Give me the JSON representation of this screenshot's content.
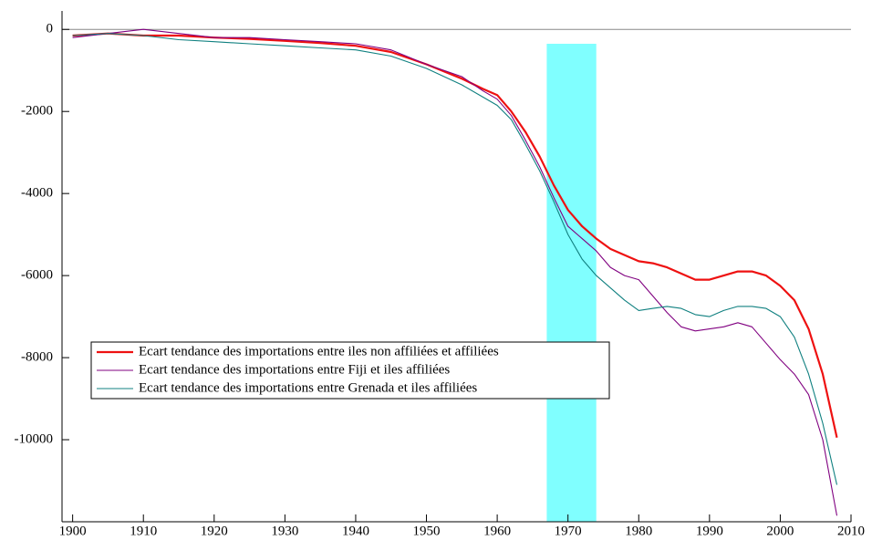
{
  "chart_data": {
    "type": "line",
    "x": [
      1900,
      1905,
      1910,
      1915,
      1920,
      1925,
      1930,
      1935,
      1940,
      1945,
      1950,
      1955,
      1958,
      1960,
      1962,
      1964,
      1966,
      1968,
      1970,
      1972,
      1974,
      1976,
      1978,
      1980,
      1982,
      1984,
      1986,
      1988,
      1990,
      1992,
      1994,
      1996,
      1998,
      2000,
      2002,
      2004,
      2006,
      2008
    ],
    "series": [
      {
        "name": "Ecart tendance des importations entre iles non affiliées et affiliées",
        "color": "#ee1111",
        "values": [
          -150,
          -100,
          -150,
          -150,
          -200,
          -230,
          -280,
          -330,
          -400,
          -550,
          -850,
          -1200,
          -1450,
          -1600,
          -2000,
          -2500,
          -3100,
          -3800,
          -4400,
          -4800,
          -5100,
          -5350,
          -5500,
          -5650,
          -5700,
          -5800,
          -5950,
          -6100,
          -6100,
          -6000,
          -5900,
          -5900,
          -6000,
          -6250,
          -6600,
          -7300,
          -8400,
          -9950
        ]
      },
      {
        "name": "Ecart tendance des importations entre Fiji et iles affiliées",
        "color": "#800080",
        "values": [
          -200,
          -100,
          0,
          -100,
          -200,
          -200,
          -250,
          -300,
          -350,
          -500,
          -850,
          -1150,
          -1500,
          -1700,
          -2100,
          -2700,
          -3350,
          -4100,
          -4800,
          -5100,
          -5400,
          -5800,
          -6000,
          -6100,
          -6500,
          -6900,
          -7250,
          -7350,
          -7300,
          -7250,
          -7150,
          -7250,
          -7650,
          -8050,
          -8400,
          -8900,
          -10000,
          -11850
        ]
      },
      {
        "name": "Ecart tendance des importations entre Grenada et iles affiliées",
        "color": "#108080",
        "values": [
          -150,
          -100,
          -150,
          -250,
          -300,
          -350,
          -400,
          -450,
          -500,
          -650,
          -950,
          -1350,
          -1650,
          -1850,
          -2200,
          -2800,
          -3450,
          -4200,
          -5000,
          -5600,
          -6000,
          -6300,
          -6600,
          -6850,
          -6800,
          -6750,
          -6800,
          -6950,
          -7000,
          -6850,
          -6750,
          -6750,
          -6800,
          -7000,
          -7500,
          -8400,
          -9600,
          -11100
        ]
      }
    ],
    "xlim": [
      1898.5,
      2010
    ],
    "xticks": [
      1900,
      1910,
      1920,
      1930,
      1940,
      1950,
      1960,
      1970,
      1980,
      1990,
      2000,
      2010
    ],
    "ylim": [
      -12000,
      450
    ],
    "yticks": [
      0,
      -2000,
      -4000,
      -6000,
      -8000,
      -10000
    ],
    "hline": 0,
    "shaded_region": {
      "x": [
        1967,
        1974
      ],
      "y": [
        -12000,
        -350
      ],
      "color": "#80ffff"
    },
    "legend": "lower left"
  }
}
